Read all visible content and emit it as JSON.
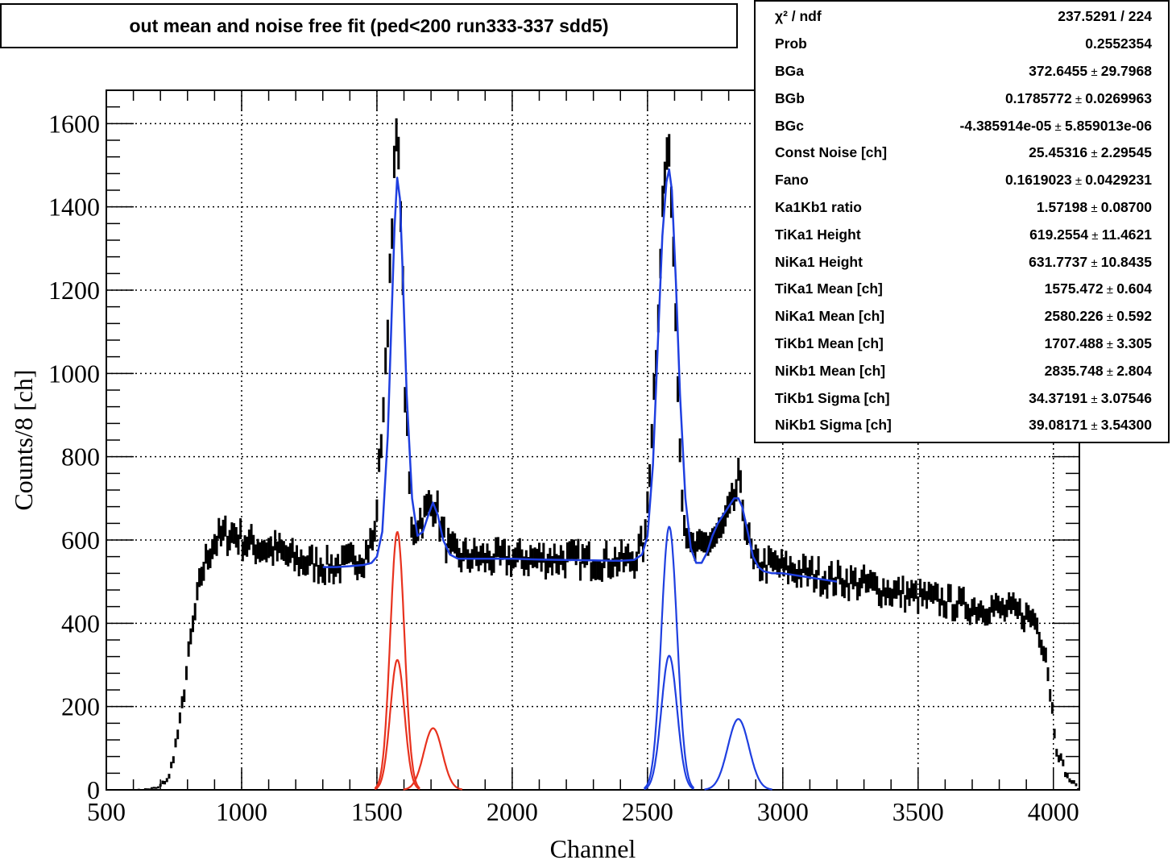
{
  "title": "out mean and noise free fit (ped<200 run333-337 sdd5)",
  "stats": [
    {
      "label": "χ² / ndf",
      "value": "237.5291 / 224"
    },
    {
      "label": "Prob",
      "value": "0.2552354"
    },
    {
      "label": "BGa",
      "value": "372.6455",
      "error": "29.7968"
    },
    {
      "label": "BGb",
      "value": "0.1785772",
      "error": "0.0269963"
    },
    {
      "label": "BGc",
      "value": "-4.385914e-05",
      "error": "5.859013e-06"
    },
    {
      "label": "Const Noise [ch]",
      "value": "25.45316",
      "error": "2.29545"
    },
    {
      "label": "Fano",
      "value": "0.1619023",
      "error": "0.0429231"
    },
    {
      "label": "Ka1Kb1 ratio",
      "value": "1.57198",
      "error": "0.08700"
    },
    {
      "label": "TiKa1 Height",
      "value": "619.2554",
      "error": "11.4621"
    },
    {
      "label": "NiKa1 Height",
      "value": "631.7737",
      "error": "10.8435"
    },
    {
      "label": "TiKa1 Mean [ch]",
      "value": "1575.472",
      "error": "0.604"
    },
    {
      "label": "NiKa1 Mean [ch]",
      "value": "2580.226",
      "error": "0.592"
    },
    {
      "label": "TiKb1 Mean [ch]",
      "value": "1707.488",
      "error": "3.305"
    },
    {
      "label": "NiKb1 Mean [ch]",
      "value": "2835.748",
      "error": "2.804"
    },
    {
      "label": "TiKb1 Sigma [ch]",
      "value": "34.37191",
      "error": "3.07546"
    },
    {
      "label": "NiKb1 Sigma [ch]",
      "value": "39.08171",
      "error": "3.54300"
    }
  ],
  "chart_data": {
    "type": "line",
    "xlabel": "Channel",
    "ylabel": "Counts/8 [ch]",
    "xlim": [
      500,
      4096
    ],
    "ylim": [
      0,
      1680
    ],
    "xticks": [
      500,
      1000,
      1500,
      2000,
      2500,
      3000,
      3500,
      4000
    ],
    "yticks": [
      0,
      200,
      400,
      600,
      800,
      1000,
      1200,
      1400,
      1600
    ],
    "grid": true,
    "legend": "none",
    "histogram": {
      "bin_width": 8,
      "color": "#000000",
      "x": [
        612,
        652,
        692,
        732,
        772,
        812,
        852,
        892,
        932,
        972,
        1012,
        1052,
        1092,
        1132,
        1172,
        1212,
        1252,
        1292,
        1332,
        1372,
        1412,
        1452,
        1492,
        1532,
        1556,
        1572,
        1588,
        1604,
        1628,
        1652,
        1692,
        1716,
        1740,
        1772,
        1812,
        1852,
        1892,
        1932,
        1972,
        2012,
        2052,
        2092,
        2132,
        2172,
        2212,
        2252,
        2292,
        2332,
        2372,
        2412,
        2452,
        2492,
        2532,
        2556,
        2572,
        2588,
        2604,
        2628,
        2652,
        2692,
        2732,
        2772,
        2812,
        2836,
        2860,
        2892,
        2932,
        2972,
        3012,
        3052,
        3092,
        3132,
        3172,
        3212,
        3252,
        3292,
        3332,
        3372,
        3412,
        3452,
        3492,
        3532,
        3572,
        3612,
        3652,
        3692,
        3732,
        3772,
        3812,
        3852,
        3892,
        3932,
        3972,
        4012,
        4052,
        4092
      ],
      "y": [
        0,
        2,
        5,
        30,
        160,
        360,
        520,
        590,
        610,
        615,
        595,
        585,
        580,
        575,
        560,
        550,
        545,
        540,
        535,
        540,
        550,
        560,
        610,
        1000,
        1380,
        1560,
        1420,
        960,
        620,
        640,
        680,
        690,
        620,
        570,
        560,
        560,
        555,
        555,
        555,
        555,
        555,
        555,
        555,
        555,
        555,
        552,
        550,
        550,
        550,
        550,
        555,
        600,
        1050,
        1400,
        1530,
        1450,
        1150,
        700,
        580,
        575,
        600,
        620,
        680,
        740,
        650,
        540,
        540,
        540,
        530,
        525,
        520,
        515,
        505,
        505,
        500,
        495,
        490,
        480,
        475,
        470,
        465,
        460,
        455,
        450,
        445,
        440,
        435,
        440,
        430,
        430,
        420,
        410,
        330,
        100,
        30,
        5
      ]
    },
    "fit": {
      "color": "#1f3fe0",
      "x": [
        1300,
        1350,
        1400,
        1450,
        1480,
        1500,
        1520,
        1540,
        1555,
        1565,
        1575,
        1585,
        1595,
        1610,
        1630,
        1650,
        1670,
        1690,
        1707,
        1725,
        1745,
        1770,
        1800,
        1900,
        2000,
        2100,
        2200,
        2300,
        2400,
        2450,
        2480,
        2500,
        2520,
        2540,
        2555,
        2570,
        2580,
        2590,
        2605,
        2620,
        2640,
        2660,
        2680,
        2700,
        2720,
        2740,
        2760,
        2780,
        2800,
        2820,
        2836,
        2850,
        2870,
        2890,
        2910,
        2930,
        2960,
        3000,
        3100,
        3200
      ],
      "y": [
        535,
        535,
        537,
        540,
        545,
        560,
        620,
        850,
        1150,
        1350,
        1470,
        1420,
        1250,
        950,
        700,
        610,
        620,
        660,
        690,
        660,
        600,
        565,
        555,
        555,
        555,
        553,
        552,
        551,
        550,
        552,
        565,
        610,
        780,
        1100,
        1330,
        1460,
        1490,
        1440,
        1220,
        950,
        700,
        580,
        545,
        545,
        570,
        610,
        640,
        660,
        680,
        700,
        700,
        680,
        620,
        560,
        535,
        525,
        520,
        520,
        510,
        500
      ]
    },
    "components": [
      {
        "color": "#e8321e",
        "center": 1575.472,
        "sigma": 26,
        "height": 619.2554
      },
      {
        "color": "#e8321e",
        "center": 1575.472,
        "sigma": 26,
        "height": 312
      },
      {
        "color": "#e8321e",
        "center": 1707.488,
        "sigma": 34.37191,
        "height": 148
      },
      {
        "color": "#1f3fe0",
        "center": 2580.226,
        "sigma": 29,
        "height": 631.7737
      },
      {
        "color": "#1f3fe0",
        "center": 2580.226,
        "sigma": 29,
        "height": 322
      },
      {
        "color": "#1f3fe0",
        "center": 2835.748,
        "sigma": 39.08171,
        "height": 170
      }
    ]
  }
}
